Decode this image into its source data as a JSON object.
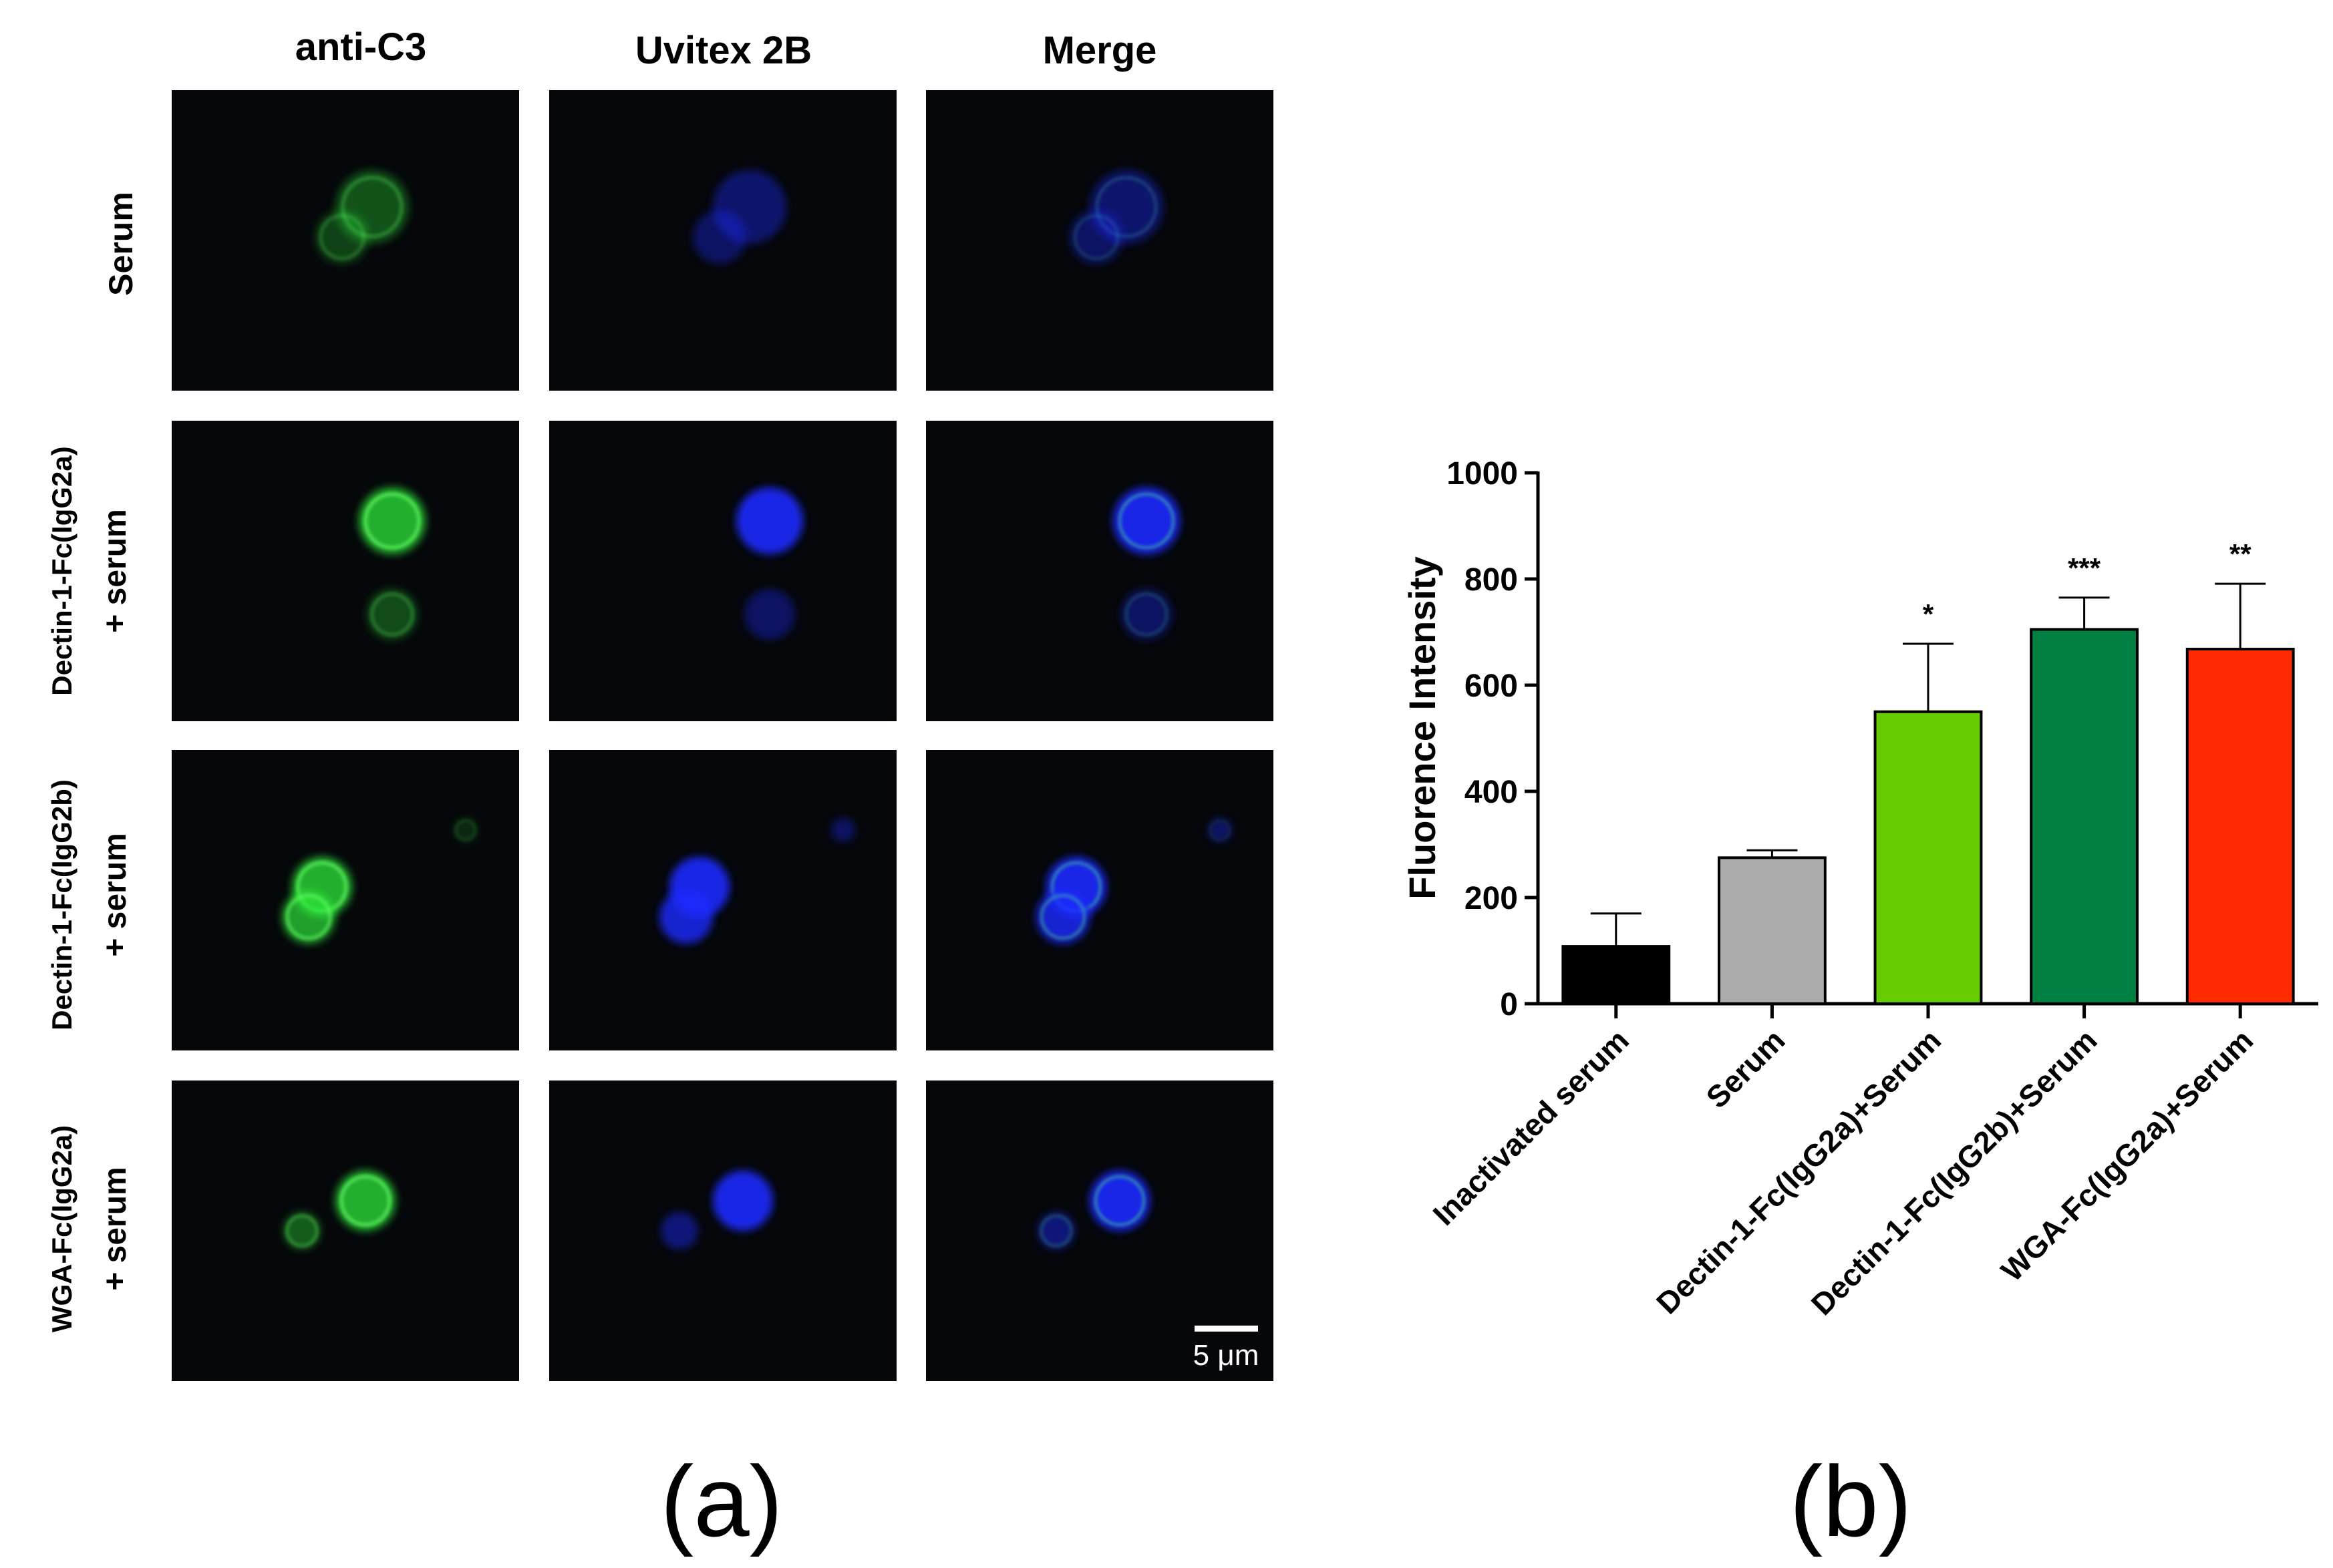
{
  "panel_a": {
    "label": "(a)",
    "column_headers": [
      "anti-C3",
      "Uvitex 2B",
      "Merge"
    ],
    "row_labels": [
      [
        "Serum"
      ],
      [
        "Dectin-1-Fc(IgG2a)",
        "+ serum"
      ],
      [
        "Dectin-1-Fc(IgG2b)",
        "+  serum"
      ],
      [
        "WGA-Fc(IgG2a)",
        "+ serum"
      ]
    ],
    "scale_bar": "5 μm",
    "colors": {
      "green": "#2fe83a",
      "blue": "#1c2cff",
      "background": "#05070a"
    }
  },
  "panel_b": {
    "label": "(b)"
  },
  "chart_data": {
    "type": "bar",
    "ylabel": "Fluorence Intensity",
    "xlabel": "",
    "ylim": [
      0,
      1000
    ],
    "yticks": [
      0,
      200,
      400,
      600,
      800,
      1000
    ],
    "categories": [
      "Inactivated serum",
      "Serum",
      "Dectin-1-Fc(IgG2a)+Serum",
      "Dectin-1-Fc(IgG2b)+Serum",
      "WGA-Fc(IgG2a)+Serum"
    ],
    "values": [
      108,
      275,
      550,
      705,
      668
    ],
    "errors": [
      62,
      14,
      128,
      60,
      123
    ],
    "significance": [
      "",
      "",
      "*",
      "***",
      "**"
    ],
    "colors": [
      "#000000",
      "#ababab",
      "#66cc00",
      "#008040",
      "#ff2a00"
    ]
  }
}
